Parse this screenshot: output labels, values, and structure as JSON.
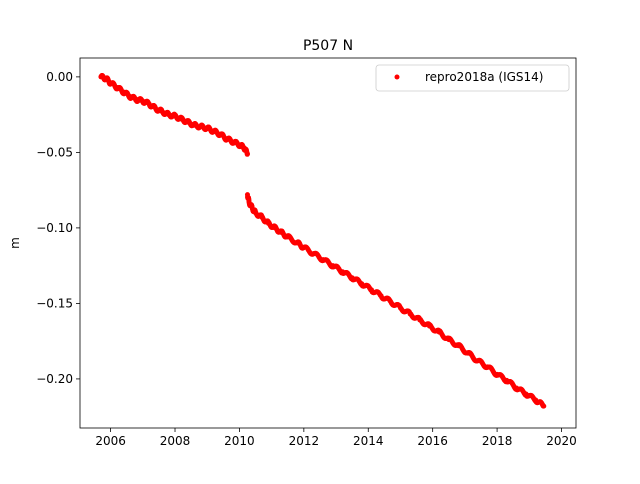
{
  "chart_data": {
    "type": "scatter",
    "title": "P507 N",
    "xlabel": "",
    "ylabel": "m",
    "xlim": [
      2005.05,
      2020.45
    ],
    "ylim": [
      -0.2325,
      0.0125
    ],
    "x_ticks": [
      2006,
      2008,
      2010,
      2012,
      2014,
      2016,
      2018,
      2020
    ],
    "x_tick_labels": [
      "2006",
      "2008",
      "2010",
      "2012",
      "2014",
      "2016",
      "2018",
      "2020"
    ],
    "y_ticks": [
      0.0,
      -0.05,
      -0.1,
      -0.15,
      -0.2
    ],
    "y_tick_labels": [
      "0.00",
      "−0.05",
      "−0.10",
      "−0.15",
      "−0.20"
    ],
    "grid": false,
    "legend_position": "top-right",
    "series": [
      {
        "name": "repro2018a (IGS14)",
        "color": "#ff0000",
        "marker": "circle",
        "x": [
          2005.7,
          2005.85,
          2006.0,
          2006.2,
          2006.4,
          2006.6,
          2006.8,
          2007.0,
          2007.2,
          2007.4,
          2007.6,
          2007.8,
          2008.0,
          2008.2,
          2008.4,
          2008.6,
          2008.8,
          2009.0,
          2009.2,
          2009.4,
          2009.6,
          2009.8,
          2010.0,
          2010.15,
          2010.25,
          2010.25,
          2010.3,
          2010.4,
          2010.5,
          2010.7,
          2010.9,
          2011.1,
          2011.3,
          2011.5,
          2011.8,
          2012.0,
          2012.3,
          2012.6,
          2012.9,
          2013.2,
          2013.5,
          2013.8,
          2014.1,
          2014.4,
          2014.7,
          2015.0,
          2015.3,
          2015.6,
          2015.9,
          2016.2,
          2016.5,
          2016.8,
          2017.1,
          2017.4,
          2017.7,
          2018.0,
          2018.3,
          2018.6,
          2018.9,
          2019.2,
          2019.45
        ],
        "y": [
          0.0,
          -0.001,
          -0.004,
          -0.007,
          -0.01,
          -0.013,
          -0.015,
          -0.016,
          -0.018,
          -0.021,
          -0.023,
          -0.025,
          -0.026,
          -0.028,
          -0.03,
          -0.032,
          -0.033,
          -0.034,
          -0.036,
          -0.038,
          -0.041,
          -0.043,
          -0.045,
          -0.047,
          -0.051,
          -0.078,
          -0.083,
          -0.087,
          -0.09,
          -0.093,
          -0.097,
          -0.1,
          -0.103,
          -0.106,
          -0.11,
          -0.113,
          -0.117,
          -0.121,
          -0.125,
          -0.129,
          -0.133,
          -0.137,
          -0.141,
          -0.145,
          -0.149,
          -0.153,
          -0.157,
          -0.161,
          -0.165,
          -0.169,
          -0.174,
          -0.178,
          -0.183,
          -0.188,
          -0.192,
          -0.197,
          -0.201,
          -0.206,
          -0.21,
          -0.214,
          -0.218
        ]
      }
    ]
  }
}
